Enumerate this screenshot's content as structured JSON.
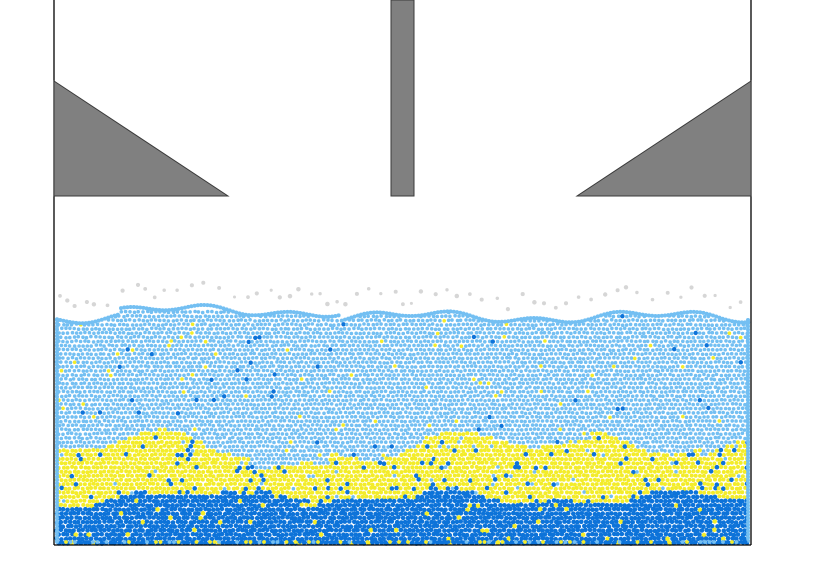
{
  "scene": {
    "background_color": "#ffffff",
    "wall_color": "#000000",
    "obstacle_fill": "#808080",
    "obstacle_stroke": "#3a3a3a",
    "gas_particle_color": "#d6d6d6"
  },
  "materials": [
    {
      "name": "light-blue",
      "color": "#73bff2",
      "role": "top layer"
    },
    {
      "name": "yellow",
      "color": "#f3ec2a",
      "role": "middle layer"
    },
    {
      "name": "dark-blue",
      "color": "#0d73d9",
      "role": "bottom layer"
    }
  ]
}
